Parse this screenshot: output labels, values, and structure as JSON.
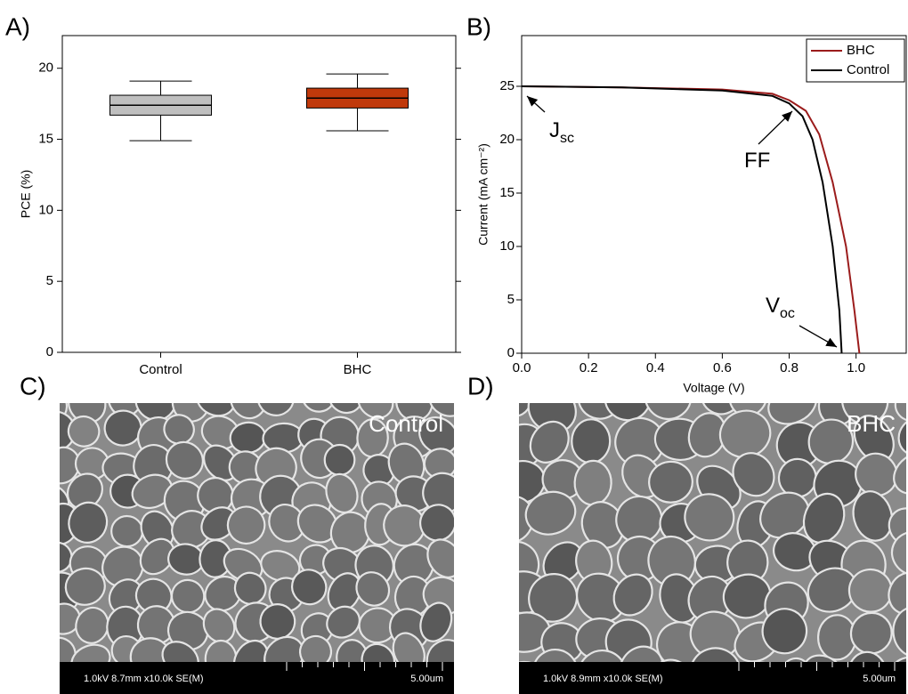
{
  "panel_labels": [
    "A)",
    "B)",
    "C)",
    "D)"
  ],
  "chart_data": [
    {
      "type": "box",
      "y_label": "PCE (%)",
      "categories": [
        "Control",
        "BHC"
      ],
      "colors": [
        "#bfbfbf",
        "#c0390b"
      ],
      "boxes": [
        {
          "whisker_low": 14.9,
          "q1": 16.7,
          "median": 17.4,
          "q3": 18.1,
          "whisker_high": 19.1
        },
        {
          "whisker_low": 15.6,
          "q1": 17.2,
          "median": 17.9,
          "q3": 18.6,
          "whisker_high": 19.6
        }
      ],
      "ylim": [
        0,
        22.3
      ],
      "yticks": [
        0,
        5,
        10,
        15,
        20
      ]
    },
    {
      "type": "line",
      "x_label": "Voltage (V)",
      "y_label": "Current (mA cm⁻²)",
      "series": [
        {
          "name": "BHC",
          "color": "#9b1c1c",
          "x": [
            0,
            0.3,
            0.6,
            0.75,
            0.8,
            0.85,
            0.89,
            0.93,
            0.97,
            0.995,
            1.01
          ],
          "values": [
            25.0,
            24.9,
            24.7,
            24.3,
            23.7,
            22.7,
            20.5,
            16,
            10,
            4,
            0
          ]
        },
        {
          "name": "Control",
          "color": "#000000",
          "x": [
            0,
            0.3,
            0.6,
            0.75,
            0.8,
            0.84,
            0.87,
            0.9,
            0.93,
            0.95,
            0.957
          ],
          "values": [
            25.0,
            24.9,
            24.6,
            24.1,
            23.4,
            22.2,
            20,
            16,
            10,
            4,
            0
          ]
        }
      ],
      "xlim": [
        0,
        1.15
      ],
      "ylim": [
        0,
        29.75
      ],
      "xticks": [
        {
          "value": 0,
          "label": "0.0"
        },
        0.2,
        0.4,
        0.6,
        0.8,
        {
          "value": 1,
          "label": "1.0"
        }
      ],
      "yticks": [
        0,
        5,
        10,
        15,
        20,
        25
      ],
      "legend": "top-right",
      "annotations": [
        {
          "text": "J",
          "sub": "sc"
        },
        {
          "text": "FF",
          "sub": ""
        },
        {
          "text": "V",
          "sub": "oc"
        }
      ]
    }
  ],
  "images": [
    {
      "label": "Control",
      "info": "1.0kV 8.7mm x10.0k SE(M)",
      "scale": "5.00um"
    },
    {
      "label": "BHC",
      "info": "1.0kV 8.9mm x10.0k SE(M)",
      "scale": "5.00um"
    }
  ]
}
